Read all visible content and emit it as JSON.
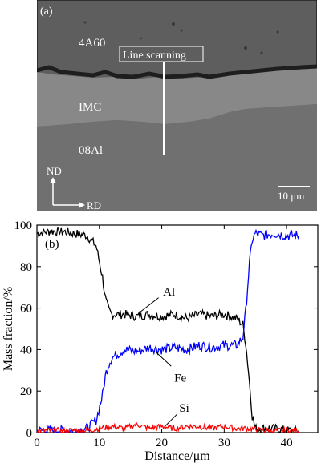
{
  "micrograph": {
    "panel_label": "(a)",
    "regions": [
      "4A60",
      "IMC",
      "08Al"
    ],
    "scan_label": "Line scanning",
    "axis_nd": "ND",
    "axis_rd": "RD",
    "scale_bar": "10 μm",
    "colors": {
      "top": "#5e5e5e",
      "middle": "#868686",
      "bottom": "#6f6f6f",
      "boundary": "#1e1e1e"
    }
  },
  "chart_data": {
    "type": "line",
    "panel_label": "(b)",
    "xlabel": "Distance/μm",
    "ylabel": "Mass fraction/%",
    "xlim": [
      0,
      45
    ],
    "ylim": [
      0,
      100
    ],
    "xticks": [
      0,
      10,
      20,
      30,
      40
    ],
    "yticks": [
      0,
      20,
      40,
      60,
      80,
      100
    ],
    "grid": false,
    "series": [
      {
        "name": "Al",
        "color": "#000000",
        "x": [
          0,
          2,
          4,
          6,
          8,
          9.5,
          10.5,
          11,
          11.5,
          12,
          14,
          16,
          18,
          20,
          22,
          24,
          26,
          28,
          30,
          32,
          33,
          33.5,
          34,
          34.5,
          35,
          36,
          38,
          40,
          42
        ],
        "y": [
          96,
          97,
          97,
          96,
          95,
          90,
          75,
          64,
          59,
          57,
          57,
          56,
          57,
          56,
          57,
          55,
          57,
          56,
          57,
          55,
          52,
          42,
          26,
          8,
          2,
          2,
          2,
          1,
          1
        ]
      },
      {
        "name": "Fe",
        "color": "#0000ff",
        "x": [
          0,
          2,
          4,
          6,
          8,
          9.5,
          10.5,
          11,
          11.5,
          12,
          13,
          14,
          16,
          18,
          20,
          22,
          24,
          26,
          28,
          30,
          32,
          33,
          33.5,
          34,
          34.5,
          35,
          36,
          38,
          40,
          42
        ],
        "y": [
          1,
          1,
          1,
          1,
          2,
          6,
          18,
          28,
          33,
          36,
          38,
          40,
          39,
          41,
          40,
          41,
          40,
          42,
          41,
          42,
          42,
          46,
          60,
          80,
          93,
          96,
          95,
          96,
          95,
          95
        ]
      },
      {
        "name": "Si",
        "color": "#ff0000",
        "x": [
          0,
          4,
          8,
          10,
          12,
          14,
          16,
          18,
          20,
          22,
          24,
          26,
          28,
          30,
          32,
          34,
          36,
          38,
          40,
          42
        ],
        "y": [
          1,
          1,
          1,
          2,
          3,
          2,
          4,
          2,
          3,
          2,
          3,
          3,
          2,
          3,
          2,
          2,
          1,
          1,
          1,
          1
        ]
      }
    ]
  }
}
